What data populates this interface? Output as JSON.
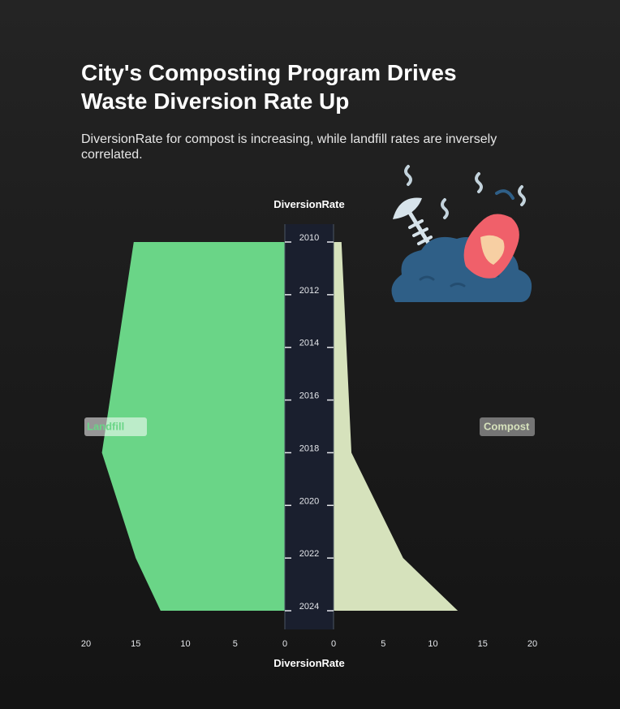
{
  "title": "City's Composting Program Drives Waste Diversion Rate Up",
  "subtitle": "DiversionRate for compost is increasing, while landfill rates are inversely correlated.",
  "chart_data": {
    "type": "area",
    "orientation": "horizontal-butterfly",
    "y_axis_title": "DiversionRate",
    "x_axis_title": "DiversionRate",
    "years": [
      2010,
      2012,
      2014,
      2016,
      2018,
      2020,
      2022,
      2024
    ],
    "x_ticks": [
      0,
      5,
      10,
      15,
      20
    ],
    "xlim": [
      0,
      20
    ],
    "series": [
      {
        "name": "Landfill",
        "side": "left",
        "color": "#6ad587",
        "points": [
          {
            "year": 2010,
            "value": 15.2
          },
          {
            "year": 2018,
            "value": 18.4
          },
          {
            "year": 2022,
            "value": 15.0
          },
          {
            "year": 2024,
            "value": 12.5
          }
        ]
      },
      {
        "name": "Compost",
        "side": "right",
        "color": "#d6e2bc",
        "points": [
          {
            "year": 2010,
            "value": 0.8
          },
          {
            "year": 2018,
            "value": 1.8
          },
          {
            "year": 2022,
            "value": 7.0
          },
          {
            "year": 2024,
            "value": 12.5
          }
        ]
      }
    ],
    "axis_band_color": "#1a1f2e",
    "illustration": "rotting-waste-icon"
  }
}
